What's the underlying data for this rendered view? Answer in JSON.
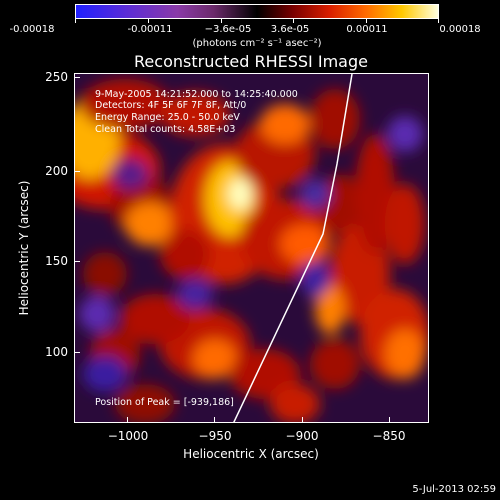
{
  "colorbar": {
    "labels": [
      "-0.00018",
      "-0.00011",
      "−3.6e-05",
      "3.6e-05",
      "0.00011",
      "0.00018"
    ],
    "unit": "(photons cm⁻² s⁻¹ asec⁻²)"
  },
  "title": "Reconstructed RHESSI Image",
  "info": {
    "time": "9-May-2005 14:21:52.000 to 14:25:40.000",
    "detectors": "Detectors: 4F 5F 6F 7F 8F, Att/0",
    "energy": "Energy Range: 25.0 - 50.0 keV",
    "clean": "Clean     Total counts: 4.58E+03",
    "peak": "Position of Peak = [-939,186]"
  },
  "axes": {
    "xlabel": "Heliocentric X (arcsec)",
    "ylabel": "Heliocentric Y (arcsec)",
    "xticks": [
      "−1000",
      "−950",
      "−900",
      "−850"
    ],
    "yticks": [
      "250",
      "200",
      "150",
      "100"
    ]
  },
  "footer_date": "5-Jul-2013 02:59",
  "colors": {
    "background": "#000000",
    "text": "#ffffff",
    "limb": "#ffffff"
  }
}
